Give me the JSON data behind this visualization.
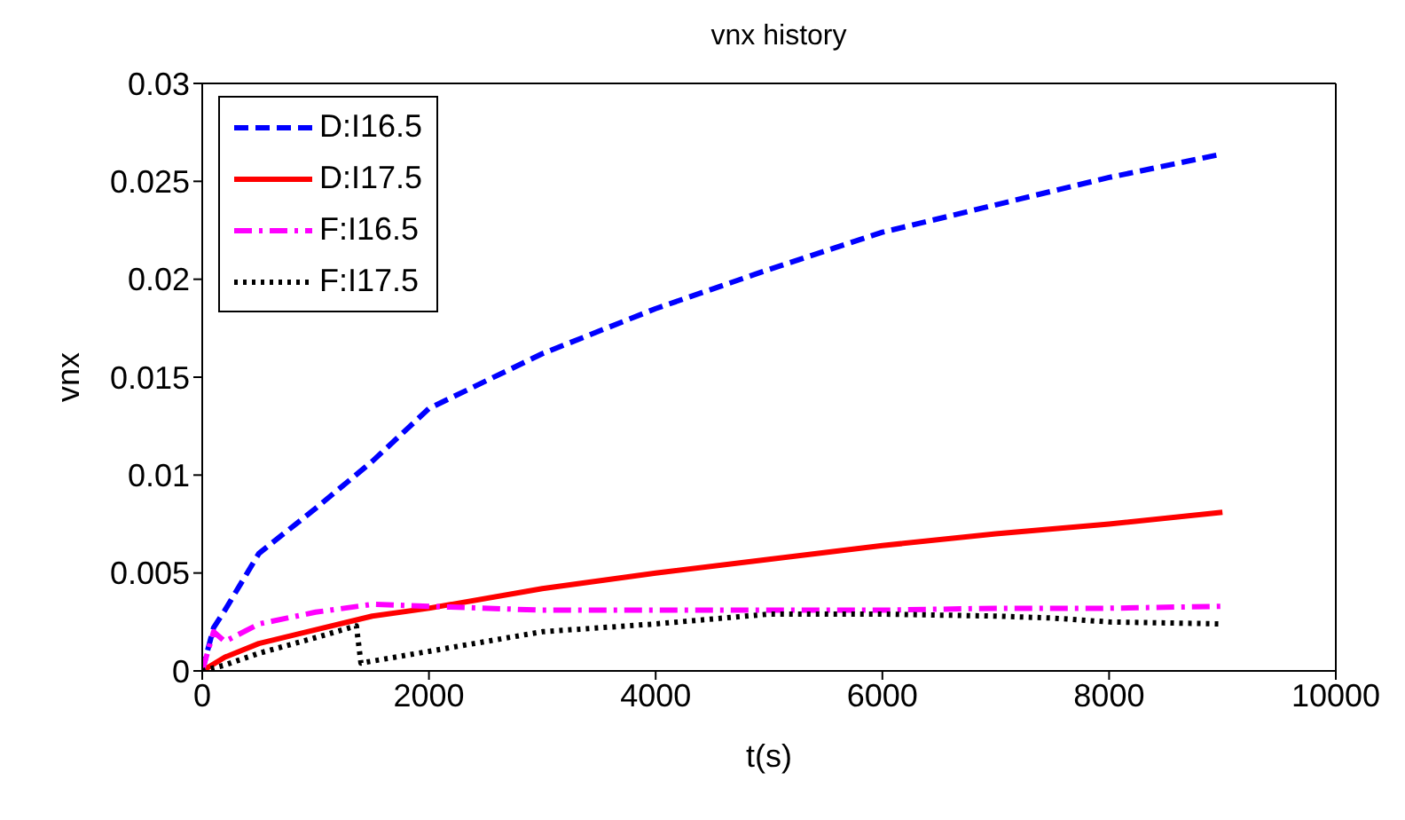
{
  "chart_data": {
    "type": "line",
    "title": "vnx history",
    "xlabel": "t(s)",
    "ylabel": "vnx",
    "xlim": [
      0,
      10000
    ],
    "xticks": [
      0,
      2000,
      4000,
      6000,
      8000,
      10000
    ],
    "ylim": [
      0,
      0.03
    ],
    "yticks": [
      0,
      0.005,
      0.01,
      0.015,
      0.02,
      0.025,
      0.03
    ],
    "grid": false,
    "legend": "top left",
    "marker": "none",
    "series": [
      {
        "name": "D:I16.5",
        "color": "#0000ff",
        "line_style": "dashed",
        "x": [
          0,
          100,
          200,
          500,
          1000,
          1500,
          2000,
          3000,
          4000,
          5000,
          6000,
          7000,
          8000,
          9000
        ],
        "values": [
          0,
          0.0022,
          0.0031,
          0.006,
          0.0083,
          0.0107,
          0.0134,
          0.0162,
          0.0185,
          0.0205,
          0.0224,
          0.0238,
          0.0252,
          0.0264
        ]
      },
      {
        "name": "D:I17.5",
        "color": "#ff0000",
        "line_style": "solid",
        "x": [
          0,
          200,
          500,
          1000,
          1500,
          2000,
          3000,
          4000,
          5000,
          6000,
          7000,
          8000,
          9000
        ],
        "values": [
          0,
          0.0007,
          0.0014,
          0.0021,
          0.0028,
          0.0032,
          0.0042,
          0.005,
          0.0057,
          0.0064,
          0.007,
          0.0075,
          0.0081
        ]
      },
      {
        "name": "F:I16.5",
        "color": "#ff00ff",
        "line_style": "dashdot",
        "x": [
          0,
          100,
          200,
          500,
          1000,
          1500,
          2000,
          3000,
          4000,
          5000,
          6000,
          7000,
          8000,
          9000
        ],
        "values": [
          0,
          0.002,
          0.0015,
          0.0024,
          0.003,
          0.0034,
          0.0033,
          0.0031,
          0.0031,
          0.0031,
          0.0031,
          0.0032,
          0.0032,
          0.0033
        ]
      },
      {
        "name": "F:I17.5",
        "color": "#000000",
        "line_style": "dotted",
        "x": [
          0,
          200,
          500,
          1000,
          1360,
          1400,
          2000,
          3000,
          4000,
          5000,
          6000,
          7000,
          7500,
          8000,
          9000
        ],
        "values": [
          0,
          0.0003,
          0.0009,
          0.0017,
          0.0023,
          0.0004,
          0.001,
          0.002,
          0.0024,
          0.0029,
          0.0029,
          0.0028,
          0.0027,
          0.0025,
          0.0024
        ]
      }
    ]
  }
}
